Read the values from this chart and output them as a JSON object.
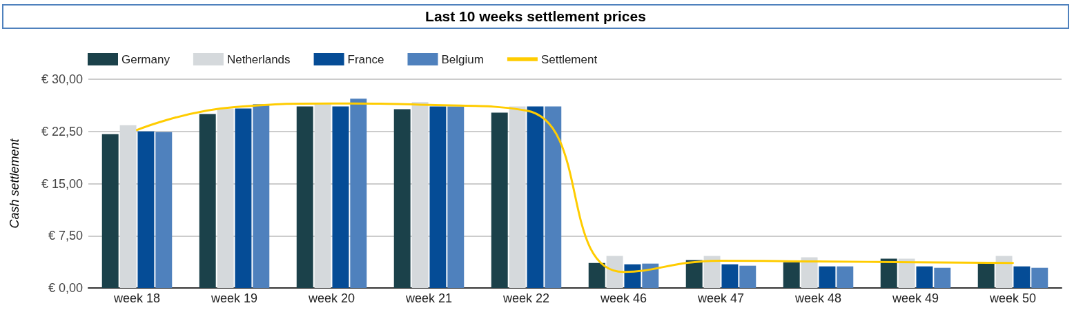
{
  "chart_data": {
    "type": "bar",
    "title": "Last 10 weeks settlement prices",
    "ylabel": "Cash settlement",
    "categories": [
      "week 18",
      "week 19",
      "week 20",
      "week 21",
      "week 22",
      "week 46",
      "week 47",
      "week 48",
      "week 49",
      "week 50"
    ],
    "series": [
      {
        "name": "Germany",
        "color": "#1b414a",
        "values": [
          22.1,
          25.0,
          26.1,
          25.7,
          25.2,
          3.6,
          4.0,
          3.7,
          4.2,
          3.6
        ]
      },
      {
        "name": "Netherlands",
        "color": "#d5d9dc",
        "values": [
          23.4,
          25.8,
          26.4,
          26.7,
          26.1,
          4.6,
          4.6,
          4.4,
          4.2,
          4.6
        ]
      },
      {
        "name": "France",
        "color": "#054c96",
        "values": [
          22.5,
          25.8,
          26.1,
          26.1,
          26.1,
          3.4,
          3.4,
          3.1,
          3.1,
          3.1
        ]
      },
      {
        "name": "Belgium",
        "color": "#4f81bd",
        "values": [
          22.4,
          26.4,
          27.2,
          26.1,
          26.1,
          3.5,
          3.2,
          3.1,
          2.9,
          2.9
        ]
      },
      {
        "name": "Settlement",
        "type": "line",
        "color": "#ffcc00",
        "marker": "none",
        "values": [
          22.7,
          26.0,
          26.5,
          26.3,
          25.5,
          2.3,
          3.9,
          3.8,
          3.7,
          3.6
        ]
      }
    ],
    "ylim": [
      0,
      30
    ],
    "yticks": [
      {
        "value": 0,
        "label": "€ 0,00"
      },
      {
        "value": 7.5,
        "label": "€ 7,50"
      },
      {
        "value": 15,
        "label": "€ 15,00"
      },
      {
        "value": 22.5,
        "label": "€ 22,50"
      },
      {
        "value": 30,
        "label": "€ 30,00"
      }
    ],
    "grid": "y",
    "legend": "top left"
  }
}
